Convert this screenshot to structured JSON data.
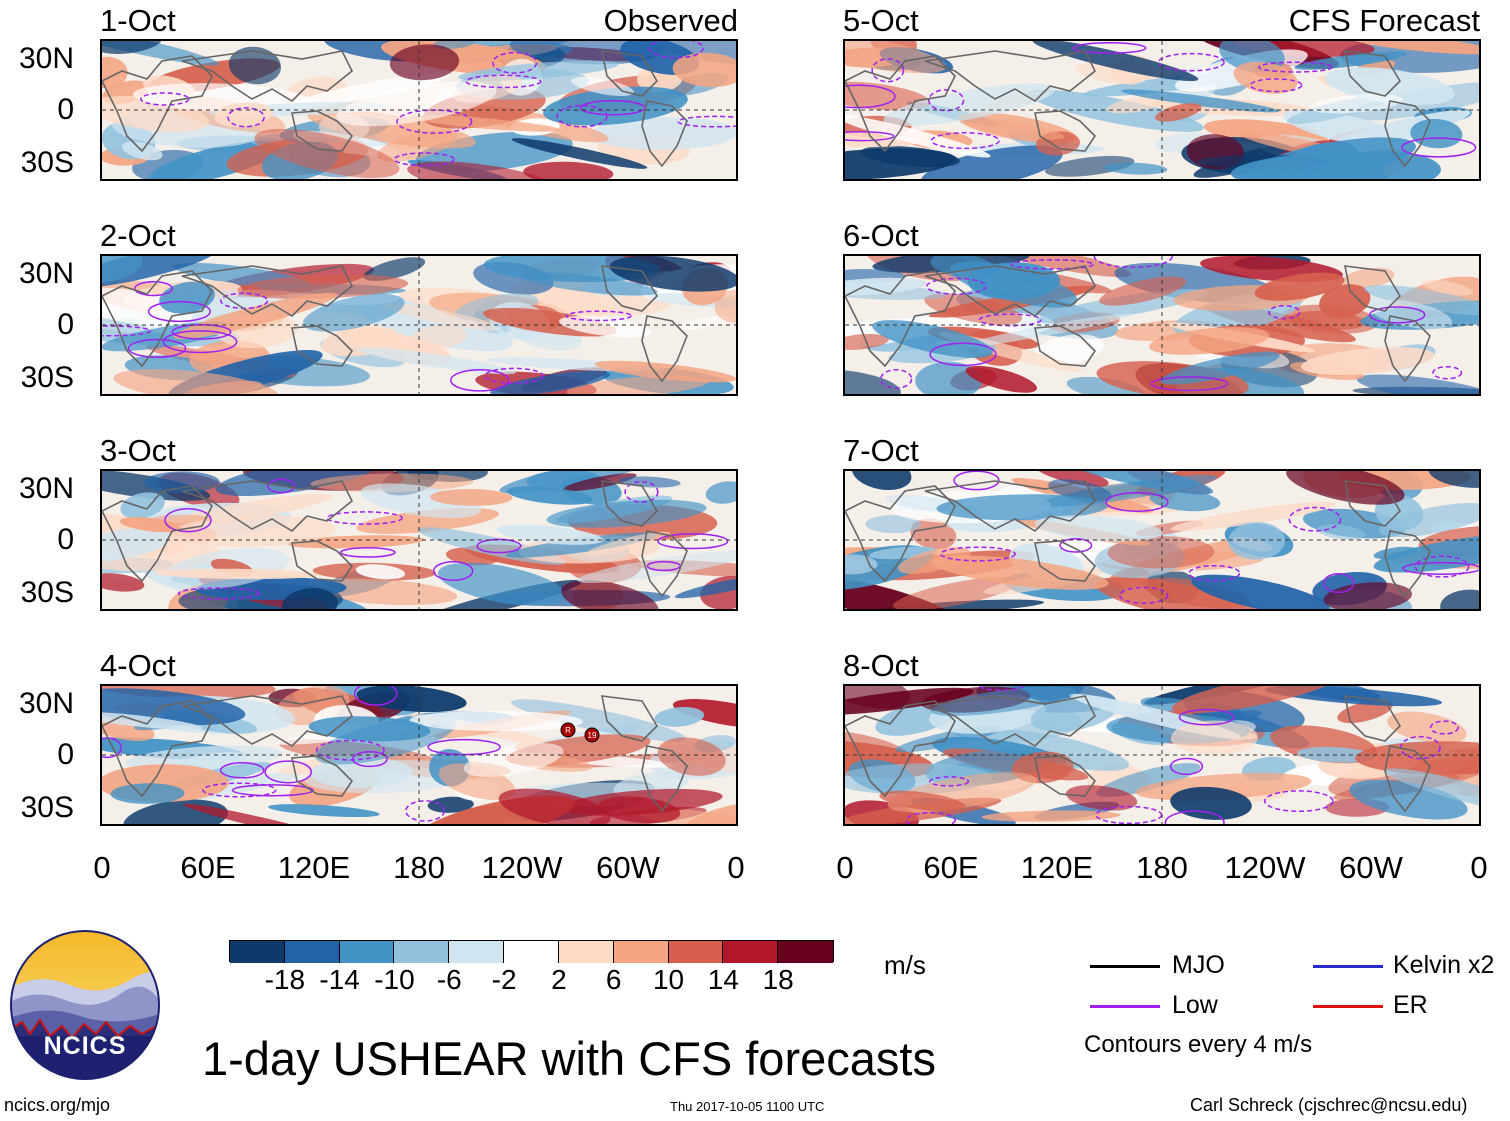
{
  "chart_data": {
    "type": "heatmap",
    "title": "1-day USHEAR with CFS forecasts",
    "columns": [
      {
        "header": "Observed",
        "panels": [
          "1-Oct",
          "2-Oct",
          "3-Oct",
          "4-Oct"
        ]
      },
      {
        "header": "CFS Forecast",
        "panels": [
          "5-Oct",
          "6-Oct",
          "7-Oct",
          "8-Oct"
        ]
      }
    ],
    "y_ticks": [
      "30N",
      "0",
      "30S"
    ],
    "y_range_deg": [
      -40,
      40
    ],
    "x_ticks": [
      "0",
      "60E",
      "120E",
      "180",
      "120W",
      "60W",
      "0"
    ],
    "x_range_deg": [
      0,
      360
    ],
    "colorbar": {
      "unit": "m/s",
      "ticks": [
        "-18",
        "-14",
        "-10",
        "-6",
        "-2",
        "2",
        "6",
        "10",
        "14",
        "18"
      ],
      "colors": [
        "#0d3a6b",
        "#2163a8",
        "#4292c6",
        "#92c2de",
        "#d1e5f0",
        "#ffffff",
        "#fddbc7",
        "#f4a582",
        "#d6604d",
        "#b2182b",
        "#67001f"
      ]
    },
    "legend": [
      {
        "label": "MJO",
        "color": "#000000"
      },
      {
        "label": "Kelvin x2",
        "color": "#2a2acc"
      },
      {
        "label": "Low",
        "color": "#a020f0"
      },
      {
        "label": "ER",
        "color": "#dd1111"
      }
    ],
    "contour_note": "Contours every 4 m/s",
    "storm_markers": [
      "R",
      "19"
    ]
  },
  "footer": {
    "site": "ncics.org/mjo",
    "timestamp": "Thu 2017-10-05 1100 UTC",
    "author": "Carl Schreck (cjschrec@ncsu.edu)",
    "logo_text": "NCICS"
  }
}
